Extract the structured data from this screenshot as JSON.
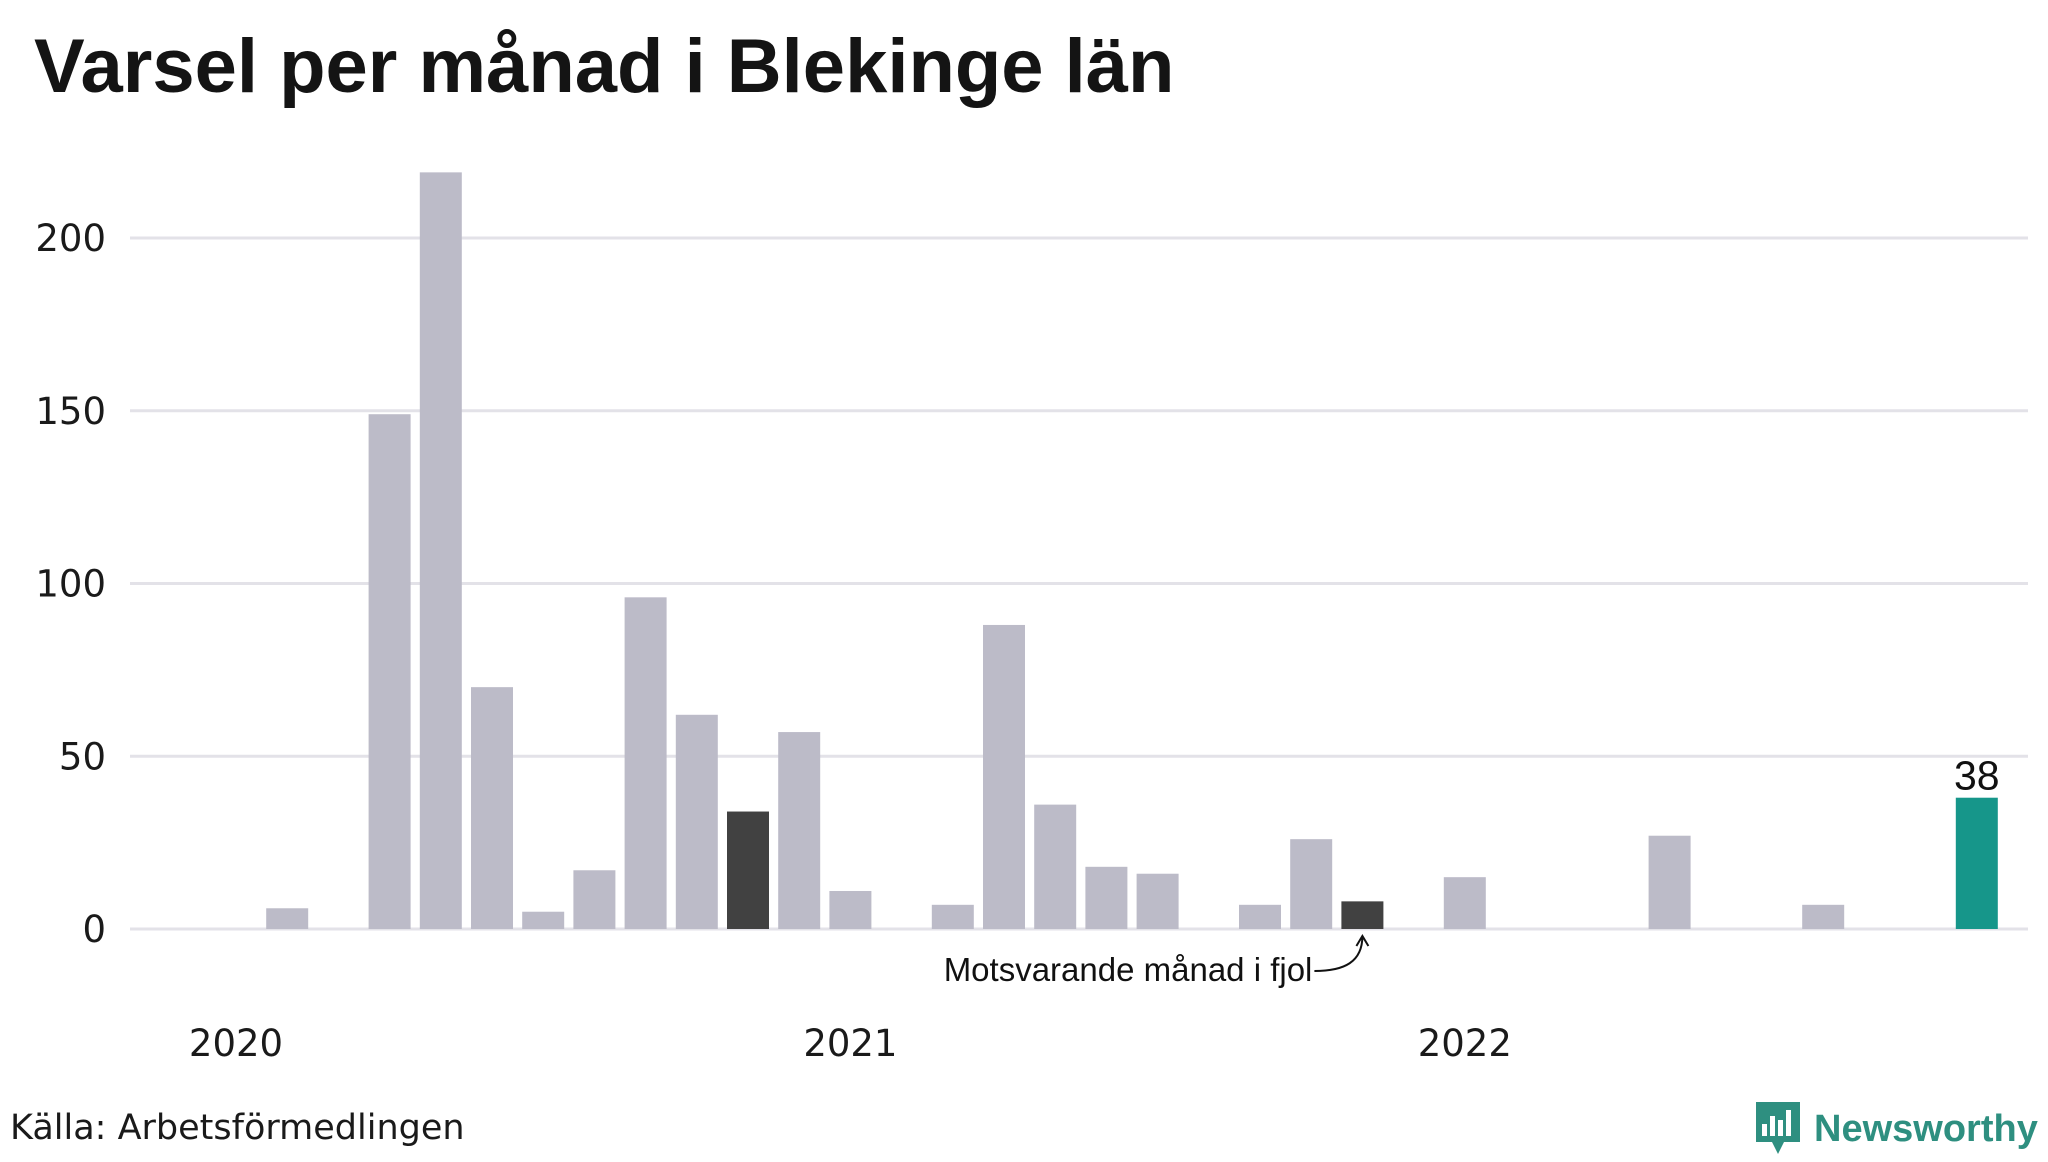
{
  "title": "Varsel per månad i Blekinge län",
  "source": "Källa: Arbetsförmedlingen",
  "brand": {
    "name": "Newsworthy",
    "icon": "newsworthy-logo-icon"
  },
  "colors": {
    "bar": "#bcbbc8",
    "highlight": "#414141",
    "latest": "#16968a",
    "grid": "#e3e2e8"
  },
  "chart_data": {
    "type": "bar",
    "title": "Varsel per månad i Blekinge län",
    "xlabel": "",
    "ylabel": "",
    "ylim": [
      0,
      220
    ],
    "yticks": [
      0,
      50,
      100,
      150,
      200
    ],
    "grid": true,
    "x_tick_labels": [
      {
        "label": "2020",
        "index": 0
      },
      {
        "label": "2021",
        "index": 12
      },
      {
        "label": "2022",
        "index": 24
      }
    ],
    "categories": [
      "2020-01",
      "2020-02",
      "2020-03",
      "2020-04",
      "2020-05",
      "2020-06",
      "2020-07",
      "2020-08",
      "2020-09",
      "2020-10",
      "2020-11",
      "2020-12",
      "2021-01",
      "2021-02",
      "2021-03",
      "2021-04",
      "2021-05",
      "2021-06",
      "2021-07",
      "2021-08",
      "2021-09",
      "2021-10",
      "2021-11",
      "2021-12",
      "2022-01",
      "2022-02",
      "2022-03",
      "2022-04",
      "2022-05",
      "2022-06",
      "2022-07",
      "2022-08",
      "2022-09",
      "2022-10",
      "2022-11",
      "2022-12"
    ],
    "values": [
      0,
      6,
      0,
      149,
      219,
      70,
      5,
      17,
      96,
      62,
      34,
      57,
      11,
      0,
      7,
      88,
      36,
      18,
      16,
      0,
      7,
      26,
      8,
      0,
      15,
      0,
      0,
      0,
      27,
      0,
      0,
      7,
      0,
      0,
      38,
      0
    ],
    "highlights": [
      {
        "index": 10,
        "role": "previous-year",
        "color": "#414141"
      },
      {
        "index": 22,
        "role": "previous-year",
        "color": "#414141"
      },
      {
        "index": 34,
        "role": "latest",
        "color": "#16968a",
        "label": "38"
      }
    ],
    "annotation": {
      "text": "Motsvarande månad i fjol",
      "target_index": 22
    }
  }
}
